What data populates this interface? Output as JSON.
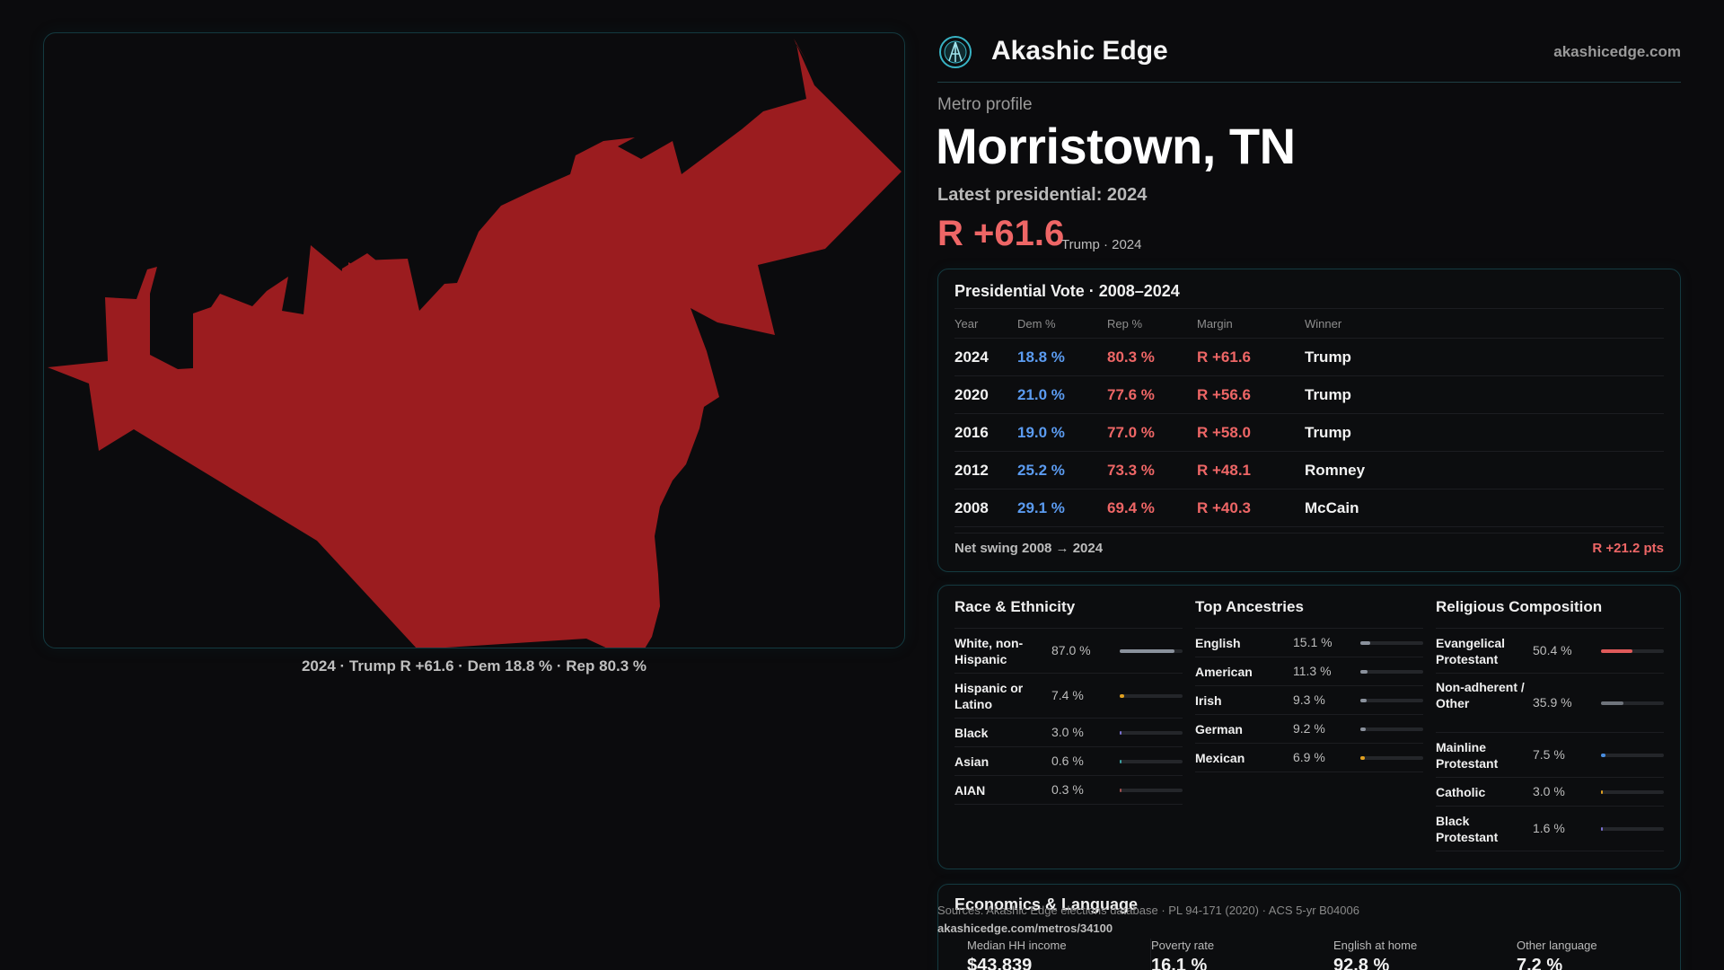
{
  "header": {
    "app_title": "Akashic Edge",
    "site_link": "akashicedge.com",
    "logo_icon": "akashic-edge-logo-icon"
  },
  "profile": {
    "kicker": "Metro profile",
    "metro_name": "Morristown, TN",
    "latest_label": "Latest presidential: 2024",
    "margin": "R +61.6",
    "margin_sub": "Trump · 2024"
  },
  "map": {
    "fill_color": "#9b1c1f",
    "caption": "2024 · Trump R +61.6 · Dem 18.8 % · Rep 80.3 %"
  },
  "vote": {
    "title": "Presidential Vote · 2008–2024",
    "columns": [
      "Year",
      "Dem %",
      "Rep %",
      "Margin",
      "Winner"
    ],
    "rows": [
      {
        "year": "2024",
        "dem": "18.8 %",
        "rep": "80.3 %",
        "margin": "R +61.6",
        "winner": "Trump"
      },
      {
        "year": "2020",
        "dem": "21.0 %",
        "rep": "77.6 %",
        "margin": "R +56.6",
        "winner": "Trump"
      },
      {
        "year": "2016",
        "dem": "19.0 %",
        "rep": "77.0 %",
        "margin": "R +58.0",
        "winner": "Trump"
      },
      {
        "year": "2012",
        "dem": "25.2 %",
        "rep": "73.3 %",
        "margin": "R +48.1",
        "winner": "Romney"
      },
      {
        "year": "2008",
        "dem": "29.1 %",
        "rep": "69.4 %",
        "margin": "R +40.3",
        "winner": "McCain"
      }
    ],
    "swing_label": "Net swing 2008 → 2024",
    "swing_value": "R +21.2 pts"
  },
  "demographics": {
    "race": {
      "title": "Race & Ethnicity",
      "items": [
        {
          "label": "White, non-Hispanic",
          "value": "87.0 %",
          "pct": 87.0,
          "color": "#8a919c"
        },
        {
          "label": "Hispanic or Latino",
          "value": "7.4 %",
          "pct": 7.4,
          "color": "#e0a020"
        },
        {
          "label": "Black",
          "value": "3.0 %",
          "pct": 3.0,
          "color": "#7a6fd0"
        },
        {
          "label": "Asian",
          "value": "0.6 %",
          "pct": 0.6,
          "color": "#3aa0a0"
        },
        {
          "label": "AIAN",
          "value": "0.3 %",
          "pct": 0.3,
          "color": "#a05050"
        }
      ]
    },
    "ancestry": {
      "title": "Top Ancestries",
      "items": [
        {
          "label": "English",
          "value": "15.1 %",
          "pct": 15.1,
          "color": "#8a919c"
        },
        {
          "label": "American",
          "value": "11.3 %",
          "pct": 11.3,
          "color": "#8a919c"
        },
        {
          "label": "Irish",
          "value": "9.3 %",
          "pct": 9.3,
          "color": "#8a919c"
        },
        {
          "label": "German",
          "value": "9.2 %",
          "pct": 9.2,
          "color": "#8a919c"
        },
        {
          "label": "Mexican",
          "value": "6.9 %",
          "pct": 6.9,
          "color": "#e0a020"
        }
      ]
    },
    "religion": {
      "title": "Religious Composition",
      "items": [
        {
          "label": "Evangelical Protestant",
          "value": "50.4 %",
          "pct": 50.4,
          "color": "#e05a5a"
        },
        {
          "label": "Non-adherent / Other",
          "value": "35.9 %",
          "pct": 35.9,
          "color": "#6f747c"
        },
        {
          "label": "Mainline Protestant",
          "value": "7.5 %",
          "pct": 7.5,
          "color": "#4a8ee0"
        },
        {
          "label": "Catholic",
          "value": "3.0 %",
          "pct": 3.0,
          "color": "#e0a020"
        },
        {
          "label": "Black Protestant",
          "value": "1.6 %",
          "pct": 1.6,
          "color": "#7a6fd0"
        }
      ]
    }
  },
  "economics": {
    "title": "Economics & Language",
    "stats": [
      {
        "label": "Median HH income",
        "value": "$43,839"
      },
      {
        "label": "Poverty rate",
        "value": "16.1 %"
      },
      {
        "label": "English at home",
        "value": "92.8 %"
      },
      {
        "label": "Other language",
        "value": "7.2 %"
      }
    ]
  },
  "footer": {
    "sources": "Sources: Akashic Edge elections database · PL 94-171 (2020) · ACS 5-yr B04006",
    "url": "akashicedge.com/metros/34100"
  },
  "colors": {
    "dem": "#5b9bf0",
    "rep": "#ee6666",
    "accent_border": "#143a40"
  }
}
